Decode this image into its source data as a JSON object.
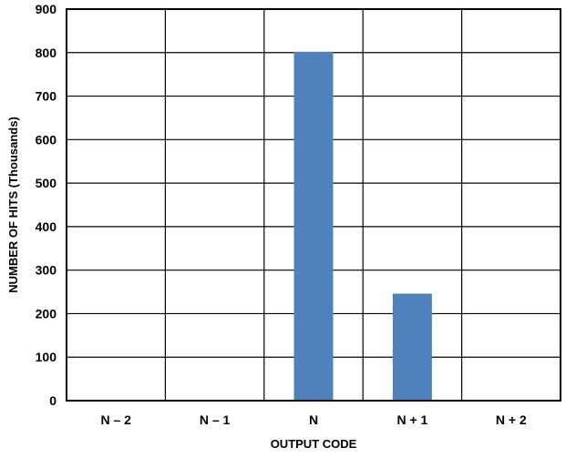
{
  "chart_data": {
    "type": "bar",
    "title": "",
    "xlabel": "OUTPUT CODE",
    "ylabel": "NUMBER OF HITS (Thousands)",
    "categories": [
      "N – 2",
      "N – 1",
      "N",
      "N + 1",
      "N + 2"
    ],
    "values": [
      0,
      0,
      802,
      246,
      0
    ],
    "ylim": [
      0,
      900
    ],
    "yticks": [
      "0",
      "100",
      "200",
      "300",
      "400",
      "500",
      "600",
      "700",
      "800",
      "900"
    ],
    "grid": true,
    "legend": "none",
    "bar_color": "#4f81bd"
  }
}
